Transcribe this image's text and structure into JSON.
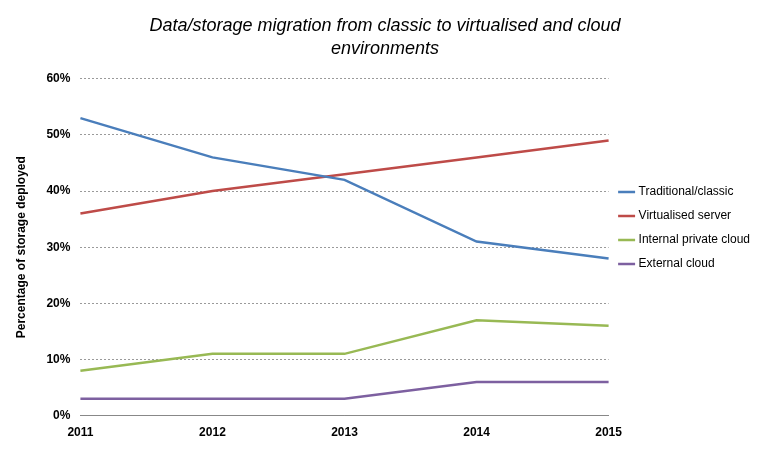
{
  "chart_data": {
    "type": "line",
    "title": "Data/storage migration from classic to virtualised and cloud environments",
    "ylabel": "Percentage of storage deployed",
    "categories": [
      "2011",
      "2012",
      "2013",
      "2014",
      "2015"
    ],
    "series": [
      {
        "name": "Traditional/classic",
        "color": "#4a7ebb",
        "values": [
          53,
          46,
          42,
          31,
          28
        ]
      },
      {
        "name": "Virtualised server",
        "color": "#be4b48",
        "values": [
          36,
          40,
          43,
          46,
          49
        ]
      },
      {
        "name": "Internal private cloud",
        "color": "#98b954",
        "values": [
          8,
          11,
          11,
          17,
          16
        ]
      },
      {
        "name": "External cloud",
        "color": "#7d60a0",
        "values": [
          3,
          3,
          3,
          6,
          6
        ]
      }
    ],
    "ylim": [
      0,
      60
    ],
    "yticks": [
      {
        "value": 0,
        "label": "0%"
      },
      {
        "value": 10,
        "label": "10%"
      },
      {
        "value": 20,
        "label": "20%"
      },
      {
        "value": 30,
        "label": "30%"
      },
      {
        "value": 40,
        "label": "40%"
      },
      {
        "value": 50,
        "label": "50%"
      },
      {
        "value": 60,
        "label": "60%"
      }
    ],
    "grid": true,
    "legend": "right"
  }
}
